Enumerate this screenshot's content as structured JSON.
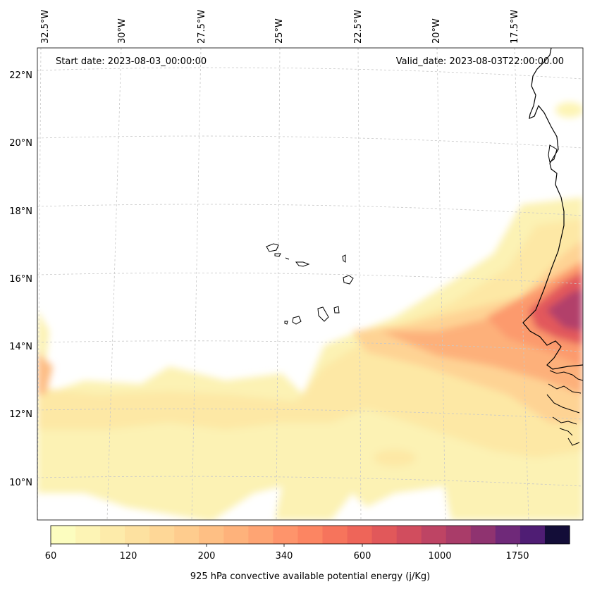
{
  "header": {
    "start_date": "Start date: 2023-08-03_00:00:00",
    "valid_date": "Valid_date: 2023-08-03T22:00:00.00"
  },
  "map": {
    "longitude_labels": [
      "32.5°W",
      "30°W",
      "27.5°W",
      "25°W",
      "22.5°W",
      "20°W",
      "17.5°W"
    ],
    "latitude_labels": [
      "22°N",
      "20°N",
      "18°N",
      "16°N",
      "14°N",
      "12°N",
      "10°N"
    ],
    "gridlines": true,
    "field": "925 hPa convective available potential energy",
    "max_region": "West African coast near Senegal/Gambia"
  },
  "colorbar": {
    "tick_labels": [
      "60",
      "120",
      "200",
      "340",
      "600",
      "1000",
      "1750"
    ],
    "label": "925 hPa convective available potential energy (j/Kg)",
    "colors": [
      "#fcfdbf",
      "#fdf4b5",
      "#fdebaa",
      "#fde1a0",
      "#fed797",
      "#fecc8e",
      "#febf84",
      "#feb27b",
      "#fea473",
      "#fe946b",
      "#fc8562",
      "#f6745c",
      "#ee6559",
      "#e1585a",
      "#d14d5e",
      "#be4464",
      "#a93c69",
      "#8f3370",
      "#6f2979",
      "#4f1d74",
      "#130d38"
    ]
  }
}
